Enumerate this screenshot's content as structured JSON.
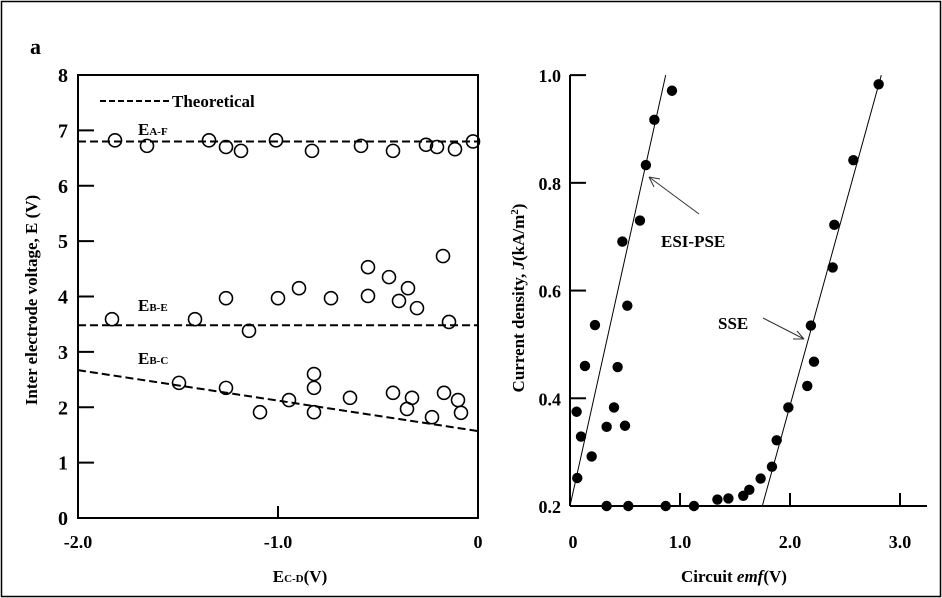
{
  "panel_label": "a",
  "chart_data": [
    {
      "type": "scatter",
      "xlabel": "E",
      "xlabel_sub": "C-D",
      "xlabel_unit": "(V)",
      "ylabel": "Inter electrode voltage, E (V)",
      "xlim": [
        -2.0,
        0
      ],
      "ylim": [
        0,
        8
      ],
      "xticks": [
        {
          "v": -2.0,
          "label": "-2.0"
        },
        {
          "v": -1.0,
          "label": "-1.0"
        },
        {
          "v": 0,
          "label": "0"
        }
      ],
      "yticks": [
        0,
        1,
        2,
        3,
        4,
        5,
        6,
        7,
        8
      ],
      "legend": {
        "label": "Theoretical",
        "style": "dashed",
        "placement": "top-left"
      },
      "marker": "open-circle",
      "series": [
        {
          "name": "E",
          "sub": "A-F",
          "theoretical": [
            [
              -2.0,
              6.8
            ],
            [
              0,
              6.8
            ]
          ],
          "points": [
            [
              -1.815,
              6.82
            ],
            [
              -1.655,
              6.72
            ],
            [
              -1.345,
              6.82
            ],
            [
              -1.26,
              6.7
            ],
            [
              -1.185,
              6.63
            ],
            [
              -1.01,
              6.82
            ],
            [
              -0.83,
              6.63
            ],
            [
              -0.585,
              6.72
            ],
            [
              -0.425,
              6.63
            ],
            [
              -0.26,
              6.74
            ],
            [
              -0.205,
              6.7
            ],
            [
              -0.115,
              6.66
            ],
            [
              -0.025,
              6.8
            ]
          ]
        },
        {
          "name": "E",
          "sub": "B-E",
          "theoretical": [
            [
              -2.0,
              3.48
            ],
            [
              0,
              3.48
            ]
          ],
          "points": [
            [
              -1.83,
              3.59
            ],
            [
              -1.415,
              3.59
            ],
            [
              -1.26,
              3.97
            ],
            [
              -1.145,
              3.38
            ],
            [
              -1.0,
              3.97
            ],
            [
              -0.895,
              4.15
            ],
            [
              -0.735,
              3.97
            ],
            [
              -0.55,
              4.53
            ],
            [
              -0.55,
              4.01
            ],
            [
              -0.445,
              4.35
            ],
            [
              -0.395,
              3.92
            ],
            [
              -0.35,
              4.15
            ],
            [
              -0.305,
              3.79
            ],
            [
              -0.175,
              4.73
            ],
            [
              -0.145,
              3.54
            ]
          ]
        },
        {
          "name": "E",
          "sub": "B-C",
          "theoretical": [
            [
              -2.0,
              2.67
            ],
            [
              0,
              1.57
            ]
          ],
          "points": [
            [
              -1.495,
              2.44
            ],
            [
              -1.26,
              2.35
            ],
            [
              -1.09,
              1.91
            ],
            [
              -0.945,
              2.13
            ],
            [
              -0.82,
              2.6
            ],
            [
              -0.82,
              2.35
            ],
            [
              -0.82,
              1.91
            ],
            [
              -0.64,
              2.17
            ],
            [
              -0.425,
              2.26
            ],
            [
              -0.33,
              2.17
            ],
            [
              -0.355,
              1.97
            ],
            [
              -0.23,
              1.82
            ],
            [
              -0.17,
              2.26
            ],
            [
              -0.1,
              2.13
            ],
            [
              -0.085,
              1.9
            ]
          ]
        }
      ]
    },
    {
      "type": "scatter",
      "xlabel": "Circuit ",
      "xlabel_italic": "emf",
      "xlabel_unit": "(V)",
      "ylabel_pre": "Current density, ",
      "ylabel_italic": "J",
      "ylabel_post": "(kA/m",
      "ylabel_sup": "2",
      "ylabel_close": ")",
      "xlim": [
        0,
        3.25
      ],
      "ylim": [
        0.2,
        1.0
      ],
      "xticks": [
        {
          "v": 0,
          "label": "0"
        },
        {
          "v": 1.0,
          "label": "1.0"
        },
        {
          "v": 2.0,
          "label": "2.0"
        },
        {
          "v": 3.0,
          "label": "3.0"
        }
      ],
      "yticks": [
        {
          "v": 0.2,
          "label": "0.2"
        },
        {
          "v": 0.4,
          "label": "0.4"
        },
        {
          "v": 0.6,
          "label": "0.6"
        },
        {
          "v": 0.8,
          "label": "0.8"
        },
        {
          "v": 1.0,
          "label": "1.0"
        }
      ],
      "marker": "filled-circle",
      "points": [
        [
          0.066,
          0.252
        ],
        [
          0.06,
          0.375
        ],
        [
          0.1,
          0.329
        ],
        [
          0.136,
          0.46
        ],
        [
          0.197,
          0.292
        ],
        [
          0.227,
          0.536
        ],
        [
          0.333,
          0.2
        ],
        [
          0.333,
          0.347
        ],
        [
          0.4,
          0.383
        ],
        [
          0.433,
          0.458
        ],
        [
          0.476,
          0.691
        ],
        [
          0.5,
          0.349
        ],
        [
          0.521,
          0.572
        ],
        [
          0.53,
          0.2
        ],
        [
          0.636,
          0.73
        ],
        [
          0.69,
          0.833
        ],
        [
          0.767,
          0.917
        ],
        [
          0.927,
          0.971
        ],
        [
          0.87,
          0.2
        ],
        [
          1.127,
          0.2
        ],
        [
          1.34,
          0.212
        ],
        [
          1.44,
          0.214
        ],
        [
          1.575,
          0.219
        ],
        [
          1.63,
          0.23
        ],
        [
          1.733,
          0.251
        ],
        [
          1.836,
          0.273
        ],
        [
          1.879,
          0.322
        ],
        [
          1.985,
          0.383
        ],
        [
          2.157,
          0.423
        ],
        [
          2.218,
          0.468
        ],
        [
          2.19,
          0.535
        ],
        [
          2.388,
          0.643
        ],
        [
          2.403,
          0.722
        ],
        [
          2.576,
          0.842
        ],
        [
          2.806,
          0.983
        ]
      ],
      "fit_lines": [
        {
          "name": "ESI-PSE",
          "points": [
            [
              0,
              0.2
            ],
            [
              0.87,
              1.0
            ]
          ]
        },
        {
          "name": "SSE",
          "points": [
            [
              1.748,
              0.2
            ],
            [
              2.83,
              1.0
            ]
          ]
        }
      ]
    }
  ]
}
